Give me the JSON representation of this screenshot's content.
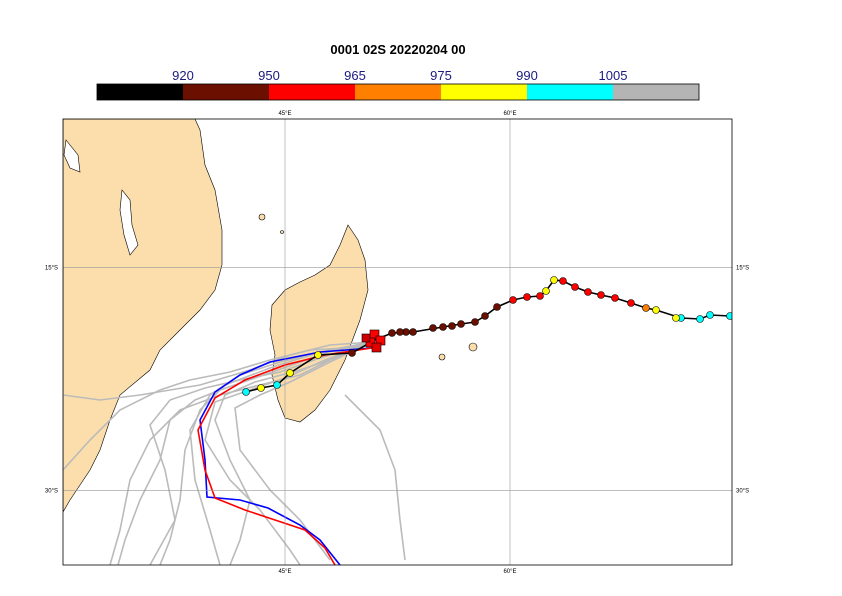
{
  "title": "0001 02S 20220204 00",
  "colorbar": {
    "ticks": [
      920,
      950,
      965,
      975,
      990,
      1005
    ],
    "colors": [
      "#000000",
      "#6b1000",
      "#ff0000",
      "#ff8000",
      "#ffff00",
      "#00ffff",
      "#b4b4b4"
    ]
  },
  "map": {
    "lon_range": [
      30.2,
      74.8
    ],
    "lat_range": [
      -5,
      -35
    ],
    "lon_ticks": [
      {
        "value": 45,
        "label": "45°E"
      },
      {
        "value": 60,
        "label": "60°E"
      }
    ],
    "lat_ticks": [
      {
        "value": -15,
        "label": "15°S"
      },
      {
        "value": -30,
        "label": "30°S"
      }
    ]
  }
}
